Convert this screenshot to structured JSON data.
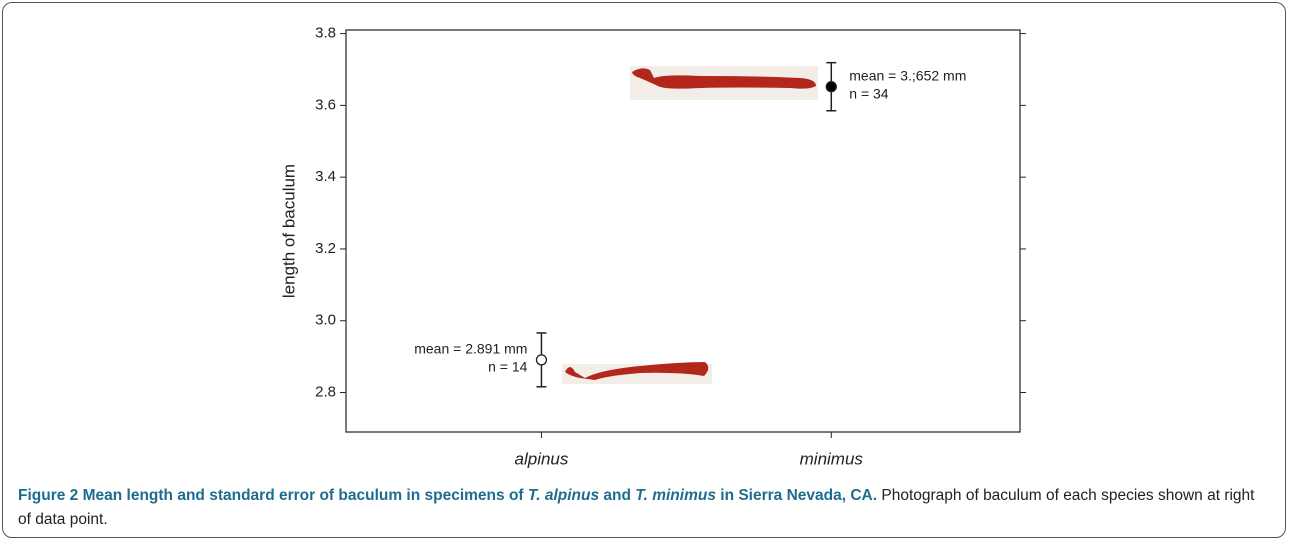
{
  "chart_data": {
    "type": "errorbar",
    "ylabel": "length of baculum",
    "categories": [
      "alpinus",
      "minimus"
    ],
    "values": [
      2.891,
      3.652
    ],
    "errors": [
      0.075,
      0.067
    ],
    "marker_fills": [
      "#ffffff",
      "#000000"
    ],
    "color": "#222222",
    "ylim": [
      2.69,
      3.81
    ],
    "yticks": [
      {
        "value": 2.8,
        "label": "2.8"
      },
      {
        "value": 3.0,
        "label": "3.0"
      },
      {
        "value": 3.2,
        "label": "3.2"
      },
      {
        "value": 3.4,
        "label": "3.4"
      },
      {
        "value": 3.6,
        "label": "3.6"
      },
      {
        "value": 3.8,
        "label": "3.8"
      }
    ],
    "annotations": [
      {
        "mean": "mean = 2.891 mm",
        "n": "n = 14"
      },
      {
        "mean": "mean = 3.;652 mm",
        "n": "n = 34"
      }
    ]
  },
  "caption": {
    "label": "Figure 2",
    "title_1": "Mean length and standard error of baculum in specimens of",
    "species_1": "T. alpinus",
    "title_2": "and",
    "species_2": "T. minimus",
    "title_3": "in Sierra Nevada, CA.",
    "text": "Photograph of baculum of each species shown at right of data point."
  }
}
